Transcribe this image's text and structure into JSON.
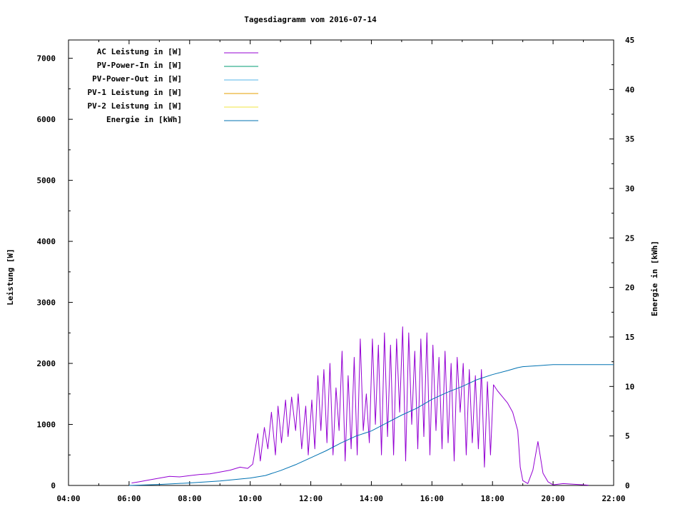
{
  "chart_data": {
    "type": "line",
    "title": "Tagesdiagramm vom 2016-07-14",
    "ylabel": "Leistung [W]",
    "y2label": "Energie in [kWh]",
    "xlim": [
      "04:00",
      "22:00"
    ],
    "ylim": [
      0,
      7300
    ],
    "y2lim": [
      0,
      45
    ],
    "x_ticks": [
      "04:00",
      "06:00",
      "08:00",
      "10:00",
      "12:00",
      "14:00",
      "16:00",
      "18:00",
      "20:00",
      "22:00"
    ],
    "y_ticks": [
      0,
      1000,
      2000,
      3000,
      4000,
      5000,
      6000,
      7000
    ],
    "y2_ticks": [
      0,
      5,
      10,
      15,
      20,
      25,
      30,
      35,
      40,
      45
    ],
    "legend_position": "top-left",
    "legend": [
      {
        "label": "AC Leistung in [W]",
        "color": "#9400d3"
      },
      {
        "label": "PV-Power-In in [W]",
        "color": "#009e73"
      },
      {
        "label": "PV-Power-Out in [W]",
        "color": "#56b4e9"
      },
      {
        "label": "PV-1 Leistung in [W]",
        "color": "#e69f00"
      },
      {
        "label": "PV-2 Leistung in [W]",
        "color": "#f0e442"
      },
      {
        "label": "Energie in [kWh]",
        "color": "#0072b2"
      }
    ],
    "series": [
      {
        "name": "AC Leistung in [W]",
        "axis": "left",
        "color": "#9400d3",
        "x": [
          "06:05",
          "06:20",
          "06:40",
          "07:00",
          "07:20",
          "07:40",
          "08:00",
          "08:20",
          "08:40",
          "09:00",
          "09:20",
          "09:40",
          "09:55",
          "10:05",
          "10:15",
          "10:20",
          "10:28",
          "10:35",
          "10:42",
          "10:50",
          "10:55",
          "11:02",
          "11:10",
          "11:15",
          "11:22",
          "11:30",
          "11:35",
          "11:42",
          "11:50",
          "11:55",
          "12:02",
          "12:08",
          "12:14",
          "12:20",
          "12:26",
          "12:32",
          "12:38",
          "12:44",
          "12:50",
          "12:56",
          "13:02",
          "13:08",
          "13:14",
          "13:20",
          "13:26",
          "13:32",
          "13:38",
          "13:44",
          "13:50",
          "13:56",
          "14:02",
          "14:08",
          "14:14",
          "14:20",
          "14:26",
          "14:32",
          "14:38",
          "14:44",
          "14:50",
          "14:56",
          "15:02",
          "15:08",
          "15:14",
          "15:20",
          "15:26",
          "15:32",
          "15:38",
          "15:44",
          "15:50",
          "15:56",
          "16:02",
          "16:08",
          "16:14",
          "16:20",
          "16:26",
          "16:32",
          "16:38",
          "16:44",
          "16:50",
          "16:56",
          "17:02",
          "17:08",
          "17:14",
          "17:20",
          "17:26",
          "17:32",
          "17:38",
          "17:44",
          "17:50",
          "17:56",
          "18:02",
          "18:10",
          "18:20",
          "18:30",
          "18:40",
          "18:50",
          "18:55",
          "19:00",
          "19:10",
          "19:20",
          "19:30",
          "19:40",
          "19:50",
          "20:00",
          "20:20",
          "20:40",
          "21:00",
          "21:10"
        ],
        "y": [
          40,
          60,
          90,
          120,
          150,
          140,
          160,
          180,
          190,
          220,
          250,
          300,
          280,
          350,
          850,
          400,
          950,
          600,
          1200,
          500,
          1300,
          700,
          1400,
          800,
          1450,
          900,
          1500,
          600,
          1300,
          500,
          1400,
          600,
          1800,
          900,
          1900,
          700,
          2000,
          500,
          1600,
          900,
          2200,
          400,
          1800,
          600,
          2100,
          500,
          2400,
          900,
          1500,
          700,
          2400,
          1000,
          2300,
          500,
          2500,
          800,
          2300,
          500,
          2400,
          1200,
          2600,
          400,
          2500,
          1000,
          2200,
          600,
          2400,
          800,
          2500,
          500,
          2300,
          900,
          2100,
          600,
          2200,
          700,
          2000,
          400,
          2100,
          1200,
          2000,
          500,
          1900,
          700,
          1800,
          600,
          1900,
          300,
          1700,
          500,
          1650,
          1550,
          1450,
          1350,
          1200,
          900,
          300,
          80,
          30,
          250,
          720,
          200,
          60,
          10,
          30,
          20,
          10,
          5
        ]
      },
      {
        "name": "Energie in [kWh]",
        "axis": "right",
        "color": "#0072b2",
        "x": [
          "06:00",
          "07:00",
          "08:00",
          "09:00",
          "10:00",
          "10:30",
          "11:00",
          "11:30",
          "12:00",
          "12:30",
          "13:00",
          "13:30",
          "14:00",
          "14:30",
          "15:00",
          "15:30",
          "16:00",
          "16:30",
          "17:00",
          "17:30",
          "18:00",
          "18:30",
          "18:50",
          "19:00",
          "19:30",
          "20:00",
          "21:00",
          "22:00"
        ],
        "y": [
          0.0,
          0.1,
          0.25,
          0.45,
          0.75,
          1.0,
          1.5,
          2.1,
          2.8,
          3.5,
          4.3,
          5.0,
          5.5,
          6.3,
          7.1,
          7.8,
          8.7,
          9.4,
          10.0,
          10.7,
          11.2,
          11.6,
          11.9,
          12.0,
          12.1,
          12.2,
          12.2,
          12.2
        ]
      }
    ]
  }
}
